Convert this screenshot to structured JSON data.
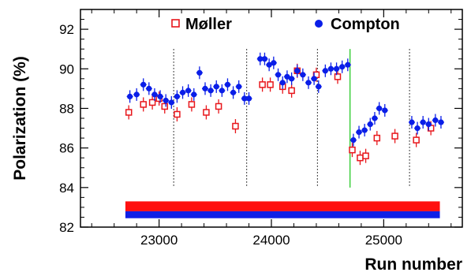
{
  "chart_data": {
    "type": "scatter",
    "xlabel": "Run number",
    "ylabel": "Polarization (%)",
    "xlim": [
      22300,
      25700
    ],
    "ylim": [
      82,
      93
    ],
    "x_ticks": [
      23000,
      24000,
      25000
    ],
    "y_ticks": [
      82,
      84,
      86,
      88,
      90,
      92
    ],
    "grid": false,
    "legend_position": "top",
    "colors": {
      "moller": "#e8161b",
      "compton": "#0a1ee8",
      "transition": "#33cc33",
      "divider": "#000000"
    },
    "series": [
      {
        "name": "Møller",
        "marker": "open-square",
        "x": [
          22730,
          22860,
          22940,
          23000,
          23050,
          23160,
          23290,
          23420,
          23530,
          23680,
          23920,
          23990,
          24100,
          24180,
          24230,
          24400,
          24590,
          24720,
          24790,
          24840,
          24940,
          25100,
          25290,
          25420
        ],
        "y": [
          87.8,
          88.2,
          88.3,
          88.5,
          88.1,
          87.7,
          88.2,
          87.8,
          88.1,
          87.1,
          89.2,
          89.2,
          89.1,
          88.9,
          89.9,
          89.7,
          89.6,
          85.9,
          85.5,
          85.6,
          86.5,
          86.6,
          86.4,
          87.0
        ]
      },
      {
        "name": "Compton",
        "marker": "filled-circle",
        "x": [
          22740,
          22800,
          22860,
          22910,
          22960,
          23010,
          23060,
          23110,
          23160,
          23210,
          23260,
          23310,
          23360,
          23410,
          23460,
          23510,
          23560,
          23610,
          23660,
          23710,
          23760,
          23800,
          23900,
          23940,
          23980,
          24020,
          24060,
          24100,
          24140,
          24180,
          24230,
          24280,
          24330,
          24380,
          24420,
          24480,
          24530,
          24580,
          24630,
          24680,
          24730,
          24780,
          24830,
          24880,
          24920,
          24960,
          25010,
          25250,
          25300,
          25350,
          25400,
          25460,
          25510
        ],
        "y": [
          88.6,
          88.7,
          89.2,
          89.0,
          88.7,
          88.6,
          88.4,
          88.3,
          88.6,
          88.8,
          88.9,
          88.7,
          89.8,
          89.0,
          88.9,
          89.1,
          88.9,
          89.2,
          88.8,
          89.1,
          88.5,
          88.5,
          90.5,
          90.5,
          90.2,
          90.3,
          89.7,
          89.3,
          89.6,
          89.5,
          89.9,
          89.7,
          89.3,
          89.5,
          89.1,
          89.9,
          90.0,
          90.0,
          90.1,
          90.2,
          86.4,
          86.8,
          86.9,
          87.2,
          87.5,
          88.0,
          87.9,
          87.3,
          87.0,
          87.3,
          87.2,
          87.4,
          87.3
        ]
      }
    ],
    "divider_runs": [
      23130,
      23780,
      24410,
      25230
    ],
    "transition_run": 24700,
    "bands": [
      {
        "color": "#ff1010",
        "y_from": 82.8,
        "y_to": 83.3,
        "x_from": 22700,
        "x_to": 25500
      },
      {
        "color": "#1020e6",
        "y_from": 82.45,
        "y_to": 82.8,
        "x_from": 22700,
        "x_to": 25500
      }
    ]
  }
}
